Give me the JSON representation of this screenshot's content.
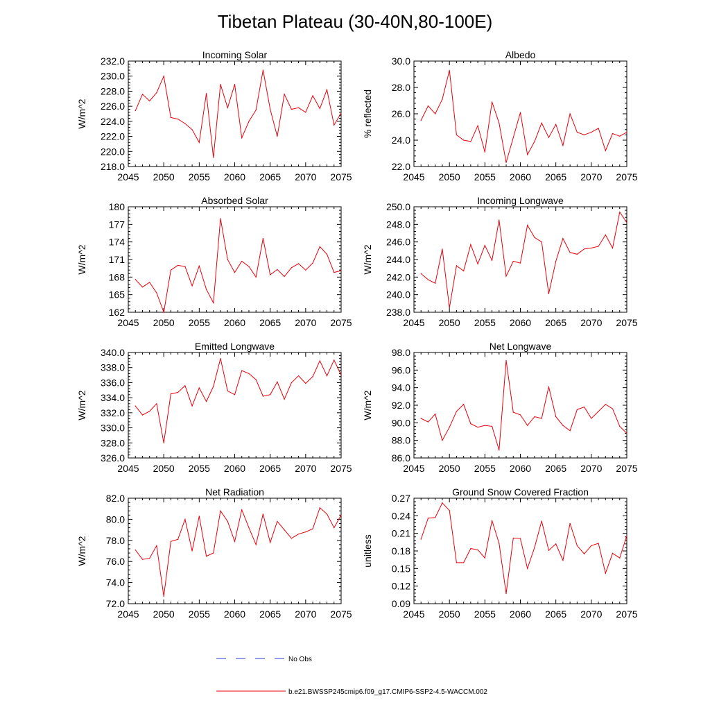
{
  "title": "Tibetan Plateau (30-40N,80-100E)",
  "colors": {
    "model": "#e8000b",
    "obs": "#2b3bd6",
    "axis": "#000000"
  },
  "legend": {
    "obs_label": "No Obs",
    "model_label": "b.e21.BWSSP245cmip6.f09_g17.CMIP6-SSP2-4.5-WACCM.002"
  },
  "chart_data": [
    {
      "type": "line",
      "title": "Incoming Solar",
      "ylabel": "W/m^2",
      "xlim": [
        2045,
        2075
      ],
      "ylim": [
        218.0,
        232.0
      ],
      "xticks": [
        2045,
        2050,
        2055,
        2060,
        2065,
        2070,
        2075
      ],
      "yticks": [
        "218.0",
        "220.0",
        "222.0",
        "224.0",
        "226.0",
        "228.0",
        "230.0",
        "232.0"
      ],
      "x": [
        2046,
        2047,
        2048,
        2049,
        2050,
        2051,
        2052,
        2053,
        2054,
        2055,
        2056,
        2057,
        2058,
        2059,
        2060,
        2061,
        2062,
        2063,
        2064,
        2065,
        2066,
        2067,
        2068,
        2069,
        2070,
        2071,
        2072,
        2073,
        2074,
        2075
      ],
      "values": [
        225.4,
        227.6,
        226.7,
        227.8,
        230.0,
        224.5,
        224.3,
        223.7,
        222.9,
        221.2,
        227.7,
        219.2,
        228.9,
        225.8,
        228.9,
        221.8,
        224.0,
        225.5,
        230.8,
        225.6,
        222.0,
        227.6,
        225.6,
        225.8,
        225.2,
        227.4,
        225.7,
        228.2,
        223.5,
        225.1
      ]
    },
    {
      "type": "line",
      "title": "Albedo",
      "ylabel": "% reflected",
      "xlim": [
        2045,
        2075
      ],
      "ylim": [
        22.0,
        30.0
      ],
      "xticks": [
        2045,
        2050,
        2055,
        2060,
        2065,
        2070,
        2075
      ],
      "yticks": [
        "22.0",
        "24.0",
        "26.0",
        "28.0",
        "30.0"
      ],
      "x": [
        2046,
        2047,
        2048,
        2049,
        2050,
        2051,
        2052,
        2053,
        2054,
        2055,
        2056,
        2057,
        2058,
        2059,
        2060,
        2061,
        2062,
        2063,
        2064,
        2065,
        2066,
        2067,
        2068,
        2069,
        2070,
        2071,
        2072,
        2073,
        2074,
        2075
      ],
      "values": [
        25.5,
        26.6,
        26.0,
        27.1,
        29.3,
        24.4,
        24.0,
        23.9,
        25.1,
        23.1,
        26.9,
        25.3,
        22.3,
        24.2,
        26.1,
        22.9,
        23.9,
        25.3,
        24.2,
        25.2,
        23.6,
        26.0,
        24.6,
        24.4,
        24.6,
        24.9,
        23.2,
        24.5,
        24.3,
        24.6
      ]
    },
    {
      "type": "line",
      "title": "Absorbed Solar",
      "ylabel": "W/m^2",
      "xlim": [
        2045,
        2075
      ],
      "ylim": [
        162,
        180
      ],
      "xticks": [
        2045,
        2050,
        2055,
        2060,
        2065,
        2070,
        2075
      ],
      "yticks": [
        "162",
        "165",
        "168",
        "171",
        "174",
        "177",
        "180"
      ],
      "x": [
        2046,
        2047,
        2048,
        2049,
        2050,
        2051,
        2052,
        2053,
        2054,
        2055,
        2056,
        2057,
        2058,
        2059,
        2060,
        2061,
        2062,
        2063,
        2064,
        2065,
        2066,
        2067,
        2068,
        2069,
        2070,
        2071,
        2072,
        2073,
        2074,
        2075
      ],
      "values": [
        167.6,
        166.3,
        167.1,
        165.3,
        162.0,
        169.2,
        170.0,
        169.8,
        166.5,
        169.9,
        165.9,
        163.6,
        178.0,
        171.0,
        168.8,
        170.7,
        169.8,
        168.0,
        174.6,
        168.4,
        169.3,
        168.1,
        169.6,
        170.3,
        169.2,
        170.4,
        173.2,
        171.9,
        168.8,
        169.1
      ]
    },
    {
      "type": "line",
      "title": "Incoming Longwave",
      "ylabel": "W/m^2",
      "xlim": [
        2045,
        2075
      ],
      "ylim": [
        238.0,
        250.0
      ],
      "xticks": [
        2045,
        2050,
        2055,
        2060,
        2065,
        2070,
        2075
      ],
      "yticks": [
        "238.0",
        "240.0",
        "242.0",
        "244.0",
        "246.0",
        "248.0",
        "250.0"
      ],
      "x": [
        2046,
        2047,
        2048,
        2049,
        2050,
        2051,
        2052,
        2053,
        2054,
        2055,
        2056,
        2057,
        2058,
        2059,
        2060,
        2061,
        2062,
        2063,
        2064,
        2065,
        2066,
        2067,
        2068,
        2069,
        2070,
        2071,
        2072,
        2073,
        2074,
        2075
      ],
      "values": [
        242.4,
        241.7,
        241.3,
        245.2,
        238.5,
        243.3,
        242.7,
        245.7,
        243.5,
        245.6,
        243.9,
        248.5,
        242.1,
        243.8,
        243.6,
        247.9,
        246.5,
        246.0,
        240.1,
        243.8,
        246.4,
        244.8,
        244.6,
        245.2,
        245.3,
        245.5,
        246.8,
        245.3,
        249.4,
        248.2
      ]
    },
    {
      "type": "line",
      "title": "Emitted Longwave",
      "ylabel": "W/m^2",
      "xlim": [
        2045,
        2075
      ],
      "ylim": [
        326.0,
        340.0
      ],
      "xticks": [
        2045,
        2050,
        2055,
        2060,
        2065,
        2070,
        2075
      ],
      "yticks": [
        "326.0",
        "328.0",
        "330.0",
        "332.0",
        "334.0",
        "336.0",
        "338.0",
        "340.0"
      ],
      "x": [
        2046,
        2047,
        2048,
        2049,
        2050,
        2051,
        2052,
        2053,
        2054,
        2055,
        2056,
        2057,
        2058,
        2059,
        2060,
        2061,
        2062,
        2063,
        2064,
        2065,
        2066,
        2067,
        2068,
        2069,
        2070,
        2071,
        2072,
        2073,
        2074,
        2075
      ],
      "values": [
        332.9,
        331.7,
        332.2,
        333.2,
        328.0,
        334.5,
        334.7,
        335.6,
        332.9,
        335.3,
        333.5,
        335.5,
        339.2,
        334.9,
        334.4,
        337.6,
        337.2,
        336.4,
        334.2,
        334.4,
        336.1,
        333.8,
        336.0,
        336.9,
        335.9,
        336.8,
        338.9,
        336.9,
        339.0,
        337.0
      ]
    },
    {
      "type": "line",
      "title": "Net Longwave",
      "ylabel": "W/m^2",
      "xlim": [
        2045,
        2075
      ],
      "ylim": [
        86.0,
        98.0
      ],
      "xticks": [
        2045,
        2050,
        2055,
        2060,
        2065,
        2070,
        2075
      ],
      "yticks": [
        "86.0",
        "88.0",
        "90.0",
        "92.0",
        "94.0",
        "96.0",
        "98.0"
      ],
      "x": [
        2046,
        2047,
        2048,
        2049,
        2050,
        2051,
        2052,
        2053,
        2054,
        2055,
        2056,
        2057,
        2058,
        2059,
        2060,
        2061,
        2062,
        2063,
        2064,
        2065,
        2066,
        2067,
        2068,
        2069,
        2070,
        2071,
        2072,
        2073,
        2074,
        2075
      ],
      "values": [
        90.5,
        90.1,
        91.0,
        88.0,
        89.5,
        91.3,
        92.1,
        89.9,
        89.5,
        89.7,
        89.6,
        86.9,
        97.1,
        91.2,
        90.9,
        89.7,
        90.7,
        90.5,
        94.1,
        90.7,
        89.7,
        89.1,
        91.5,
        91.8,
        90.5,
        91.3,
        92.1,
        91.6,
        89.6,
        88.8
      ]
    },
    {
      "type": "line",
      "title": "Net Radiation",
      "ylabel": "W/m^2",
      "xlim": [
        2045,
        2075
      ],
      "ylim": [
        72.0,
        82.0
      ],
      "xticks": [
        2045,
        2050,
        2055,
        2060,
        2065,
        2070,
        2075
      ],
      "yticks": [
        "72.0",
        "74.0",
        "76.0",
        "78.0",
        "80.0",
        "82.0"
      ],
      "x": [
        2046,
        2047,
        2048,
        2049,
        2050,
        2051,
        2052,
        2053,
        2054,
        2055,
        2056,
        2057,
        2058,
        2059,
        2060,
        2061,
        2062,
        2063,
        2064,
        2065,
        2066,
        2067,
        2068,
        2069,
        2070,
        2071,
        2072,
        2073,
        2074,
        2075
      ],
      "values": [
        77.1,
        76.2,
        76.3,
        77.5,
        72.7,
        77.9,
        78.1,
        80.0,
        77.0,
        80.3,
        76.5,
        76.8,
        80.8,
        79.8,
        77.9,
        80.9,
        79.2,
        77.6,
        80.5,
        77.8,
        79.8,
        79.0,
        78.2,
        78.6,
        78.8,
        79.1,
        81.1,
        80.5,
        79.2,
        80.4
      ]
    },
    {
      "type": "line",
      "title": "Ground Snow Covered Fraction",
      "ylabel": "unitless",
      "xlim": [
        2045,
        2075
      ],
      "ylim": [
        0.09,
        0.27
      ],
      "xticks": [
        2045,
        2050,
        2055,
        2060,
        2065,
        2070,
        2075
      ],
      "yticks": [
        "0.09",
        "0.12",
        "0.15",
        "0.18",
        "0.21",
        "0.24",
        "0.27"
      ],
      "x": [
        2046,
        2047,
        2048,
        2049,
        2050,
        2051,
        2052,
        2053,
        2054,
        2055,
        2056,
        2057,
        2058,
        2059,
        2060,
        2061,
        2062,
        2063,
        2064,
        2065,
        2066,
        2067,
        2068,
        2069,
        2070,
        2071,
        2072,
        2073,
        2074,
        2075
      ],
      "values": [
        0.2,
        0.236,
        0.237,
        0.262,
        0.249,
        0.16,
        0.16,
        0.184,
        0.182,
        0.168,
        0.232,
        0.193,
        0.107,
        0.202,
        0.201,
        0.15,
        0.186,
        0.231,
        0.181,
        0.192,
        0.164,
        0.227,
        0.189,
        0.175,
        0.189,
        0.193,
        0.142,
        0.176,
        0.168,
        0.206
      ]
    }
  ]
}
